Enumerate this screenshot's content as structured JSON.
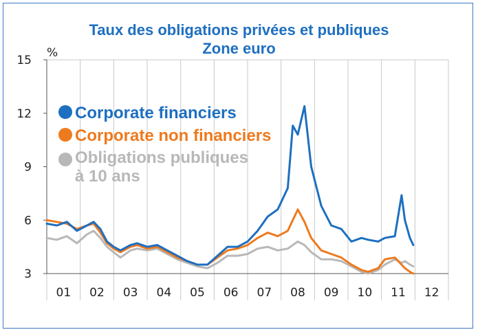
{
  "chart_data": {
    "type": "line",
    "title": "Taux des obligations privées et publiques",
    "subtitle": "Zone euro",
    "ylabel": "%",
    "xlabel": "",
    "ylim": [
      3,
      15
    ],
    "yticks": [
      3,
      6,
      9,
      12,
      15
    ],
    "xlim": [
      2001,
      2013
    ],
    "xtick_labels": [
      "01",
      "02",
      "03",
      "04",
      "05",
      "06",
      "07",
      "08",
      "09",
      "10",
      "11",
      "12"
    ],
    "grid": "vertical",
    "legend_position": "top-left",
    "series": [
      {
        "name": "Obligations publiques à 10 ans",
        "color": "#b8b8b8",
        "x": [
          2001.0,
          2001.3,
          2001.6,
          2001.9,
          2002.2,
          2002.4,
          2002.6,
          2002.8,
          2003.0,
          2003.2,
          2003.5,
          2003.7,
          2004.0,
          2004.3,
          2004.6,
          2004.9,
          2005.2,
          2005.5,
          2005.8,
          2006.1,
          2006.4,
          2006.7,
          2007.0,
          2007.3,
          2007.6,
          2007.9,
          2008.2,
          2008.5,
          2008.7,
          2008.9,
          2009.2,
          2009.5,
          2009.8,
          2010.1,
          2010.4,
          2010.6,
          2010.9,
          2011.1,
          2011.4,
          2011.6,
          2011.7,
          2011.85,
          2011.95
        ],
        "y": [
          5.0,
          4.9,
          5.1,
          4.7,
          5.2,
          5.4,
          5.0,
          4.5,
          4.2,
          3.9,
          4.3,
          4.4,
          4.3,
          4.4,
          4.1,
          3.8,
          3.6,
          3.4,
          3.3,
          3.6,
          4.0,
          4.0,
          4.1,
          4.4,
          4.5,
          4.3,
          4.4,
          4.8,
          4.6,
          4.2,
          3.8,
          3.8,
          3.7,
          3.4,
          3.1,
          3.0,
          3.2,
          3.5,
          3.8,
          3.6,
          3.7,
          3.5,
          3.4
        ]
      },
      {
        "name": "Corporate non financiers",
        "color": "#ee7a1e",
        "x": [
          2001.0,
          2001.3,
          2001.6,
          2001.9,
          2002.2,
          2002.4,
          2002.6,
          2002.8,
          2003.0,
          2003.2,
          2003.5,
          2003.7,
          2004.0,
          2004.3,
          2004.6,
          2004.9,
          2005.2,
          2005.5,
          2005.8,
          2006.1,
          2006.4,
          2006.7,
          2007.0,
          2007.3,
          2007.6,
          2007.9,
          2008.2,
          2008.5,
          2008.7,
          2008.9,
          2009.2,
          2009.5,
          2009.8,
          2010.1,
          2010.4,
          2010.6,
          2010.9,
          2011.1,
          2011.4,
          2011.6,
          2011.7,
          2011.85,
          2011.95
        ],
        "y": [
          6.0,
          5.9,
          5.8,
          5.5,
          5.7,
          5.8,
          5.3,
          4.7,
          4.4,
          4.2,
          4.5,
          4.6,
          4.4,
          4.5,
          4.2,
          3.9,
          3.7,
          3.5,
          3.5,
          3.9,
          4.3,
          4.4,
          4.6,
          5.0,
          5.3,
          5.1,
          5.4,
          6.6,
          5.9,
          5.0,
          4.3,
          4.1,
          3.9,
          3.5,
          3.2,
          3.1,
          3.3,
          3.8,
          3.9,
          3.5,
          3.3,
          3.1,
          3.0
        ]
      },
      {
        "name": "Corporate financiers",
        "color": "#1d6fc0",
        "x": [
          2001.0,
          2001.3,
          2001.6,
          2001.9,
          2002.2,
          2002.4,
          2002.6,
          2002.8,
          2003.0,
          2003.2,
          2003.5,
          2003.7,
          2004.0,
          2004.3,
          2004.6,
          2004.9,
          2005.2,
          2005.5,
          2005.8,
          2006.1,
          2006.4,
          2006.7,
          2007.0,
          2007.3,
          2007.6,
          2007.9,
          2008.2,
          2008.35,
          2008.5,
          2008.7,
          2008.9,
          2009.2,
          2009.5,
          2009.8,
          2010.1,
          2010.4,
          2010.6,
          2010.9,
          2011.1,
          2011.4,
          2011.6,
          2011.7,
          2011.85,
          2011.95
        ],
        "y": [
          5.8,
          5.7,
          5.9,
          5.4,
          5.7,
          5.9,
          5.5,
          4.8,
          4.5,
          4.3,
          4.6,
          4.7,
          4.5,
          4.6,
          4.3,
          4.0,
          3.7,
          3.5,
          3.5,
          4.0,
          4.5,
          4.5,
          4.8,
          5.4,
          6.2,
          6.6,
          7.8,
          11.3,
          10.8,
          12.4,
          9.0,
          6.8,
          5.7,
          5.5,
          4.8,
          5.0,
          4.9,
          4.8,
          5.0,
          5.1,
          7.4,
          6.0,
          5.0,
          4.6
        ]
      }
    ],
    "legend": [
      {
        "label": "Corporate financiers",
        "color": "#1d6fc0"
      },
      {
        "label": "Corporate non financiers",
        "color": "#ee7a1e"
      },
      {
        "label_line1": "Obligations publiques",
        "label_line2": "à 10 ans",
        "color": "#b8b8b8"
      }
    ]
  }
}
